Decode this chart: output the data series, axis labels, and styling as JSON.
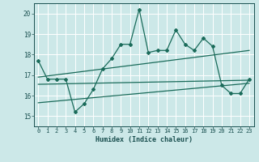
{
  "xlabel": "Humidex (Indice chaleur)",
  "bg_color": "#cce8e8",
  "grid_color": "#b8d8d8",
  "line_color": "#1a6b5a",
  "xlim": [
    -0.5,
    23.5
  ],
  "ylim": [
    14.5,
    20.5
  ],
  "yticks": [
    15,
    16,
    17,
    18,
    19,
    20
  ],
  "xticks": [
    0,
    1,
    2,
    3,
    4,
    5,
    6,
    7,
    8,
    9,
    10,
    11,
    12,
    13,
    14,
    15,
    16,
    17,
    18,
    19,
    20,
    21,
    22,
    23
  ],
  "series1_x": [
    0,
    1,
    2,
    3,
    4,
    5,
    6,
    7,
    8,
    9,
    10,
    11,
    12,
    13,
    14,
    15,
    16,
    17,
    18,
    19,
    20,
    21,
    22,
    23
  ],
  "series1_y": [
    17.7,
    16.8,
    16.8,
    16.8,
    15.2,
    15.6,
    16.3,
    17.3,
    17.8,
    18.5,
    18.5,
    20.2,
    18.1,
    18.2,
    18.2,
    19.2,
    18.5,
    18.2,
    18.8,
    18.4,
    16.5,
    16.1,
    16.1,
    16.8
  ],
  "series2_x": [
    0,
    23
  ],
  "series2_y": [
    16.9,
    18.2
  ],
  "series3_x": [
    0,
    23
  ],
  "series3_y": [
    16.55,
    16.75
  ],
  "series4_x": [
    0,
    23
  ],
  "series4_y": [
    15.65,
    16.6
  ]
}
